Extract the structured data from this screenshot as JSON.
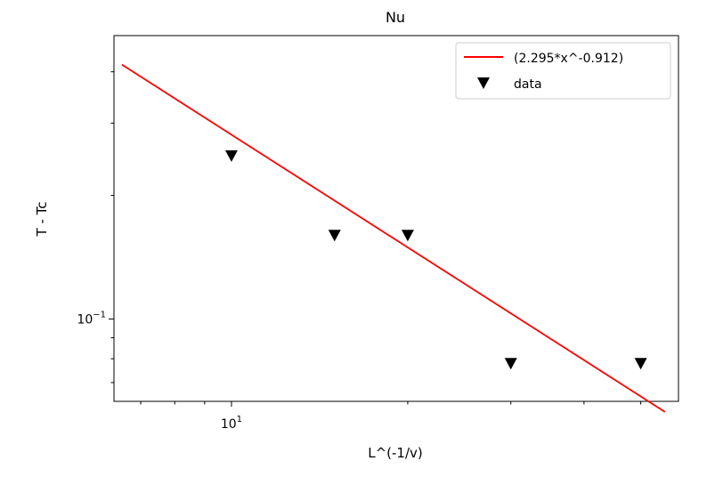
{
  "chart_data": {
    "type": "scatter",
    "title": "Nu",
    "xlabel": "L^(-1/v)",
    "ylabel": "T - Tc",
    "xscale": "log",
    "yscale": "log",
    "xlim": [
      6.3,
      58
    ],
    "ylim": [
      0.063,
      0.49
    ],
    "x_tick_label": {
      "base": "10",
      "exp": "1",
      "value": 10
    },
    "y_tick_label": {
      "base": "10",
      "exp": "−1",
      "value": 0.1
    },
    "grid": false,
    "legend_position": "top-right",
    "series": [
      {
        "name": "(2.295*x^-0.912)",
        "kind": "line",
        "color": "#ff0000",
        "coef": 2.295,
        "exponent": -0.912,
        "x_range": [
          6.5,
          55
        ]
      },
      {
        "name": "data",
        "kind": "scatter",
        "marker": "triangle-down",
        "color": "#000000",
        "x": [
          10,
          15,
          20,
          30,
          50
        ],
        "y": [
          0.25,
          0.16,
          0.16,
          0.078,
          0.078
        ]
      }
    ]
  }
}
